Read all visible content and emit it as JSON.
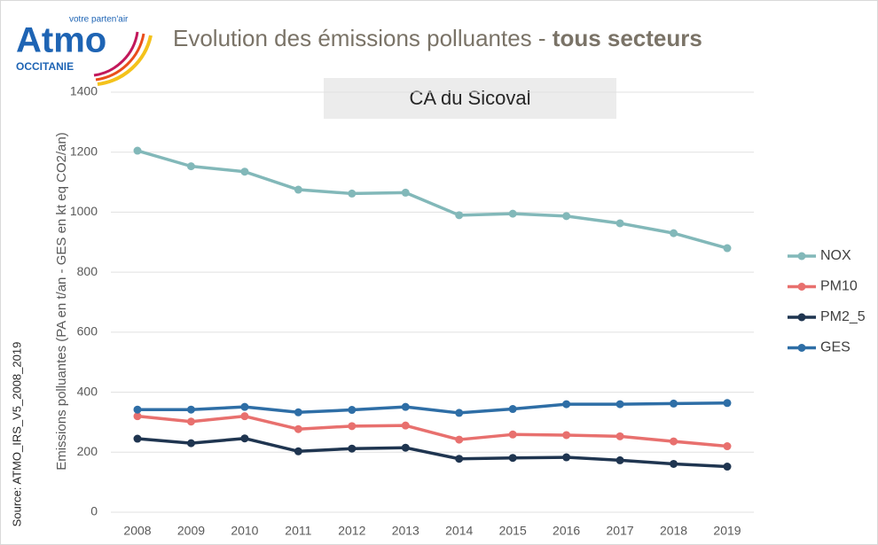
{
  "logo": {
    "name": "Atmo",
    "region": "OCCITANIE",
    "tagline": "votre parten'air"
  },
  "chart_data": {
    "type": "line",
    "title": "Evolution des émissions polluantes - ",
    "title_bold": "tous secteurs",
    "subtitle": "CA du Sicoval",
    "y_label": "Emissions polluantes  (PA en t/an - GES en kt eq CO2/an)",
    "source": "Source: ATMO_IRS_V5_2008_2019",
    "categories": [
      "2008",
      "2009",
      "2010",
      "2011",
      "2012",
      "2013",
      "2014",
      "2015",
      "2016",
      "2017",
      "2018",
      "2019"
    ],
    "series": [
      {
        "name": "NOX",
        "color": "#82b8b9",
        "values": [
          1205,
          1153,
          1135,
          1075,
          1062,
          1065,
          990,
          995,
          987,
          963,
          930,
          880
        ]
      },
      {
        "name": "PM10",
        "color": "#e8706e",
        "values": [
          320,
          302,
          320,
          277,
          287,
          289,
          242,
          259,
          257,
          253,
          236,
          220
        ]
      },
      {
        "name": "PM2_5",
        "color": "#1f3550",
        "values": [
          245,
          230,
          246,
          203,
          212,
          215,
          178,
          181,
          183,
          173,
          161,
          152
        ]
      },
      {
        "name": "GES",
        "color": "#2e6ea6",
        "values": [
          342,
          342,
          351,
          333,
          341,
          351,
          331,
          344,
          360,
          360,
          362,
          364
        ]
      }
    ],
    "ylim": [
      0,
      1400
    ],
    "yticks": [
      0,
      200,
      400,
      600,
      800,
      1000,
      1200,
      1400
    ],
    "grid": true,
    "legend": "right"
  }
}
